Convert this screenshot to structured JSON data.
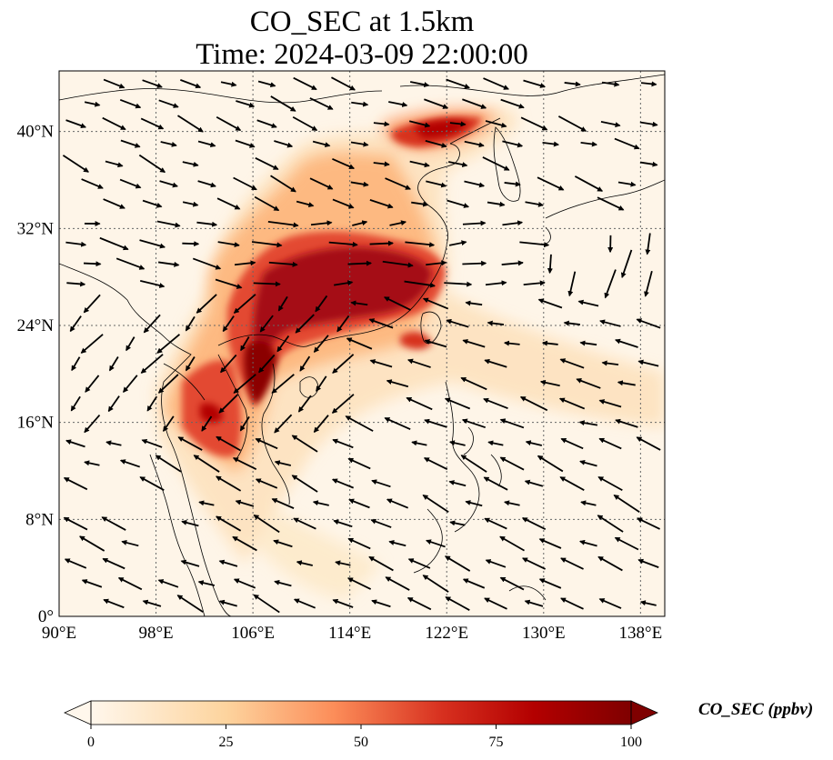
{
  "title": {
    "line1": "CO_SEC at 1.5km",
    "line2": "Time: 2024-03-09 22:00:00"
  },
  "map": {
    "variable": "CO_SEC",
    "level": "1.5km",
    "extent": {
      "lon": [
        90,
        140
      ],
      "lat": [
        0,
        45
      ]
    },
    "gridlines": true,
    "lon_ticks": [
      "90°E",
      "98°E",
      "106°E",
      "114°E",
      "122°E",
      "130°E",
      "138°E"
    ],
    "lat_ticks": [
      "0°",
      "8°N",
      "16°N",
      "24°N",
      "32°N",
      "40°N"
    ],
    "colormap": "OrRd",
    "colors": {
      "low": "#fff7ec",
      "mid": "#fc8d59",
      "high": "#7f0000",
      "coast": "#000000",
      "wind": "#000000"
    }
  },
  "colorbar": {
    "label": "CO_SEC (ppbv)",
    "ticks": [
      "0",
      "25",
      "50",
      "75",
      "100"
    ],
    "range": [
      0,
      100
    ],
    "extend": "both"
  }
}
